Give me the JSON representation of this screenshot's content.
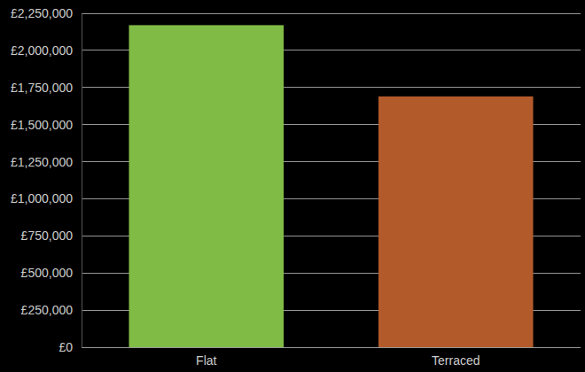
{
  "chart_data": {
    "type": "bar",
    "categories": [
      "Flat",
      "Terraced"
    ],
    "values": [
      2170000,
      1690000
    ],
    "colors": [
      "#80bc45",
      "#b35a2a"
    ],
    "ylim": [
      0,
      2250000
    ],
    "yticks": [
      {
        "value": 0,
        "label": "£0"
      },
      {
        "value": 250000,
        "label": "£250,000"
      },
      {
        "value": 500000,
        "label": "£500,000"
      },
      {
        "value": 750000,
        "label": "£750,000"
      },
      {
        "value": 1000000,
        "label": "£1,000,000"
      },
      {
        "value": 1250000,
        "label": "£1,250,000"
      },
      {
        "value": 1500000,
        "label": "£1,500,000"
      },
      {
        "value": 1750000,
        "label": "£1,750,000"
      },
      {
        "value": 2000000,
        "label": "£2,000,000"
      },
      {
        "value": 2250000,
        "label": "£2,250,000"
      }
    ],
    "grid": true
  }
}
